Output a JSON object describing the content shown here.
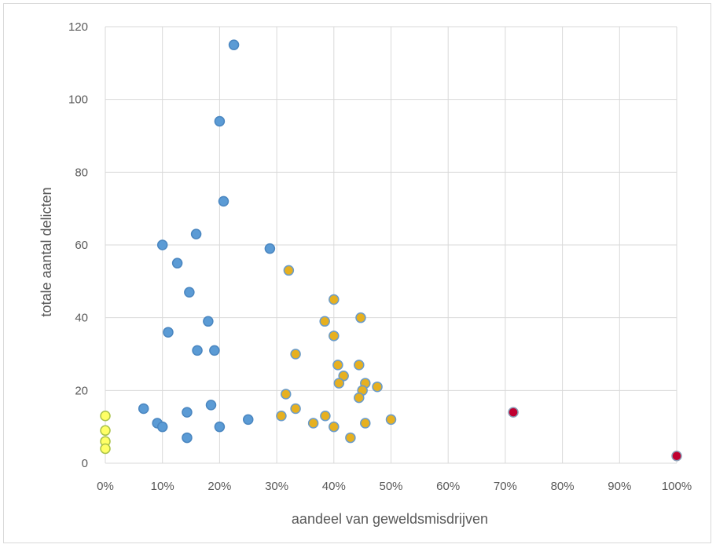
{
  "chart_data": {
    "type": "scatter",
    "xlabel": "aandeel van geweldsmisdrijven",
    "ylabel": "totale aantal delicten",
    "xlim": [
      0,
      100
    ],
    "ylim": [
      0,
      120
    ],
    "x_ticks": [
      "0%",
      "10%",
      "20%",
      "30%",
      "40%",
      "50%",
      "60%",
      "70%",
      "80%",
      "90%",
      "100%"
    ],
    "y_ticks": [
      "0",
      "20",
      "40",
      "60",
      "80",
      "100",
      "120"
    ],
    "x_tick_values": [
      0,
      10,
      20,
      30,
      40,
      50,
      60,
      70,
      80,
      90,
      100
    ],
    "y_tick_values": [
      0,
      20,
      40,
      60,
      80,
      100,
      120
    ],
    "grid": true,
    "series": [
      {
        "color": "#5b9bd5",
        "stroke": "#4a86c0",
        "points": [
          [
            22.5,
            115
          ],
          [
            20,
            94
          ],
          [
            20.7,
            72
          ],
          [
            15.9,
            63
          ],
          [
            10,
            60
          ],
          [
            28.8,
            59
          ],
          [
            12.6,
            55
          ],
          [
            14.7,
            47
          ],
          [
            18,
            39
          ],
          [
            11,
            36
          ],
          [
            16.1,
            31
          ],
          [
            19.1,
            31
          ],
          [
            6.7,
            15
          ],
          [
            9.1,
            11
          ],
          [
            10,
            10
          ],
          [
            14.3,
            14
          ],
          [
            14.3,
            7
          ],
          [
            18.5,
            16
          ],
          [
            20,
            10
          ],
          [
            25,
            12
          ]
        ]
      },
      {
        "color": "#e6b020",
        "stroke": "#6a9bc9",
        "points": [
          [
            32.1,
            53
          ],
          [
            40,
            45
          ],
          [
            44.7,
            40
          ],
          [
            38.4,
            39
          ],
          [
            40,
            35
          ],
          [
            33.3,
            30
          ],
          [
            40.7,
            27
          ],
          [
            44.4,
            27
          ],
          [
            41.7,
            24
          ],
          [
            40.9,
            22
          ],
          [
            45.5,
            22
          ],
          [
            47.6,
            21
          ],
          [
            45,
            20
          ],
          [
            31.6,
            19
          ],
          [
            44.4,
            18
          ],
          [
            33.3,
            15
          ],
          [
            30.8,
            13
          ],
          [
            38.5,
            13
          ],
          [
            36.4,
            11
          ],
          [
            40,
            10
          ],
          [
            45.5,
            11
          ],
          [
            50,
            12
          ],
          [
            42.9,
            7
          ]
        ]
      },
      {
        "color": "#ffff66",
        "stroke": "#a9c24a",
        "points": [
          [
            0,
            13
          ],
          [
            0,
            9
          ],
          [
            0,
            6
          ],
          [
            0,
            4
          ]
        ]
      },
      {
        "color": "#c00030",
        "stroke": "#8a9bb5",
        "points": [
          [
            71.4,
            14
          ],
          [
            100,
            2
          ]
        ]
      }
    ]
  }
}
